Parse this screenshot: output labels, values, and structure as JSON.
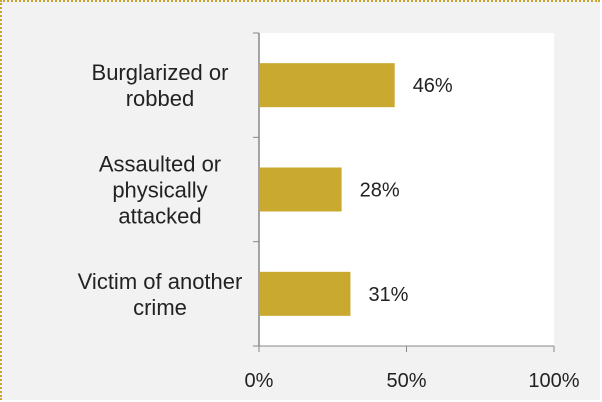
{
  "chart_data": {
    "type": "bar",
    "orientation": "horizontal",
    "categories": [
      [
        "Burglarized or",
        "robbed"
      ],
      [
        "Assaulted or",
        "physically",
        "attacked"
      ],
      [
        "Victim of another",
        "crime"
      ]
    ],
    "values": [
      46,
      28,
      31
    ],
    "data_labels": [
      "46%",
      "28%",
      "31%"
    ],
    "xlim": [
      0,
      100
    ],
    "xticks": [
      0,
      50,
      100
    ],
    "xtick_labels": [
      "0%",
      "50%",
      "100%"
    ],
    "title": "",
    "xlabel": "",
    "ylabel": "",
    "grid": false,
    "legend": "none",
    "colors": {
      "bar": "#c9a92f",
      "plot_background": "#ffffff",
      "chart_background": "#f2f2f2",
      "axis": "#888888"
    }
  }
}
